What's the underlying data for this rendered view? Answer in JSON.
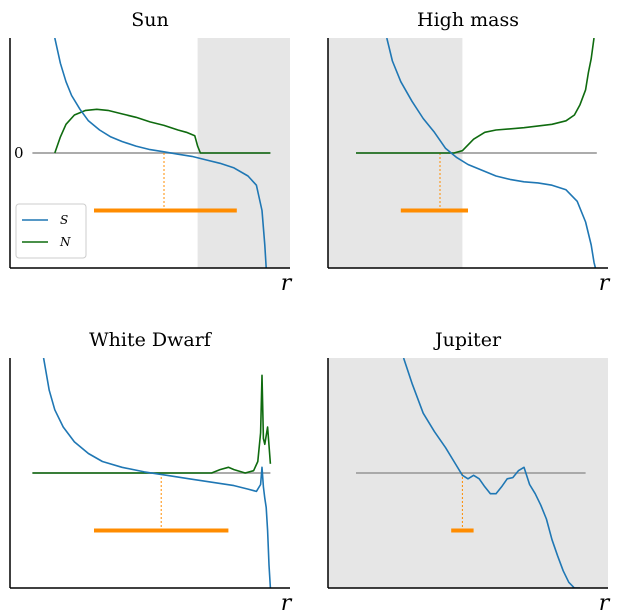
{
  "colors": {
    "S": "#1f77b4",
    "N": "#0f6b0f",
    "zero_line": "#a0a0a0",
    "bar": "#ff8c00",
    "shade": "#e6e6e6",
    "axes": "#000000"
  },
  "chart_data": [
    {
      "type": "line",
      "title": "Sun",
      "xlabel": "r",
      "ylabel": "",
      "y_tick_labels": [
        {
          "value": 0,
          "label": "0"
        }
      ],
      "xlim": [
        0,
        1
      ],
      "ylim": [
        -1,
        1
      ],
      "grid": false,
      "shaded_region": [
        0.67,
        1.0
      ],
      "legend": {
        "placement": "lower-left",
        "entries": [
          "S",
          "N"
        ]
      },
      "zero_line": [
        0.08,
        0.93
      ],
      "series": [
        {
          "name": "S",
          "x": [
            0.16,
            0.18,
            0.2,
            0.22,
            0.25,
            0.28,
            0.32,
            0.36,
            0.4,
            0.45,
            0.5,
            0.55,
            0.6,
            0.65,
            0.7,
            0.75,
            0.8,
            0.85,
            0.88,
            0.9,
            0.91,
            0.915
          ],
          "y": [
            1.0,
            0.78,
            0.62,
            0.5,
            0.38,
            0.28,
            0.2,
            0.14,
            0.1,
            0.06,
            0.03,
            0.01,
            -0.01,
            -0.03,
            -0.06,
            -0.09,
            -0.13,
            -0.2,
            -0.28,
            -0.5,
            -0.8,
            -1.0
          ]
        },
        {
          "name": "N",
          "x": [
            0.16,
            0.18,
            0.2,
            0.23,
            0.27,
            0.31,
            0.35,
            0.4,
            0.45,
            0.5,
            0.55,
            0.6,
            0.63,
            0.66,
            0.67,
            0.68,
            0.7,
            0.8,
            0.93
          ],
          "y": [
            0.0,
            0.14,
            0.25,
            0.33,
            0.37,
            0.38,
            0.37,
            0.34,
            0.31,
            0.27,
            0.24,
            0.2,
            0.18,
            0.15,
            0.06,
            0.0,
            0.0,
            0.0,
            0.0
          ]
        }
      ],
      "bar": {
        "center": 0.55,
        "x_range": [
          0.3,
          0.81
        ],
        "y": -0.5
      }
    },
    {
      "type": "line",
      "title": "High mass",
      "xlabel": "r",
      "ylabel": "",
      "xlim": [
        0,
        1
      ],
      "ylim": [
        -1,
        1
      ],
      "grid": false,
      "shaded_region": [
        0.0,
        0.48
      ],
      "zero_line": [
        0.1,
        0.96
      ],
      "series": [
        {
          "name": "S",
          "x": [
            0.21,
            0.23,
            0.26,
            0.3,
            0.34,
            0.38,
            0.42,
            0.46,
            0.5,
            0.55,
            0.6,
            0.65,
            0.7,
            0.75,
            0.8,
            0.85,
            0.89,
            0.92,
            0.94,
            0.95,
            0.955
          ],
          "y": [
            1.0,
            0.8,
            0.62,
            0.45,
            0.3,
            0.18,
            0.04,
            -0.04,
            -0.1,
            -0.15,
            -0.2,
            -0.23,
            -0.25,
            -0.26,
            -0.28,
            -0.32,
            -0.42,
            -0.6,
            -0.8,
            -0.95,
            -1.0
          ]
        },
        {
          "name": "N",
          "x": [
            0.1,
            0.3,
            0.45,
            0.48,
            0.52,
            0.56,
            0.6,
            0.7,
            0.8,
            0.85,
            0.88,
            0.9,
            0.92,
            0.93,
            0.94,
            0.95
          ],
          "y": [
            0.0,
            0.0,
            0.0,
            0.02,
            0.12,
            0.18,
            0.2,
            0.22,
            0.25,
            0.28,
            0.33,
            0.42,
            0.55,
            0.7,
            0.82,
            1.0
          ]
        }
      ],
      "bar": {
        "center": 0.4,
        "x_range": [
          0.26,
          0.5
        ],
        "y": -0.5
      }
    },
    {
      "type": "line",
      "title": "White Dwarf",
      "xlabel": "r",
      "ylabel": "",
      "xlim": [
        0,
        1
      ],
      "ylim": [
        -1,
        1
      ],
      "grid": false,
      "zero_line": [
        0.08,
        0.93
      ],
      "series": [
        {
          "name": "S",
          "x": [
            0.12,
            0.14,
            0.16,
            0.19,
            0.23,
            0.28,
            0.33,
            0.4,
            0.48,
            0.56,
            0.64,
            0.72,
            0.8,
            0.85,
            0.88,
            0.895,
            0.9,
            0.905,
            0.91,
            0.915,
            0.92,
            0.925,
            0.93
          ],
          "y": [
            1.0,
            0.72,
            0.55,
            0.4,
            0.27,
            0.17,
            0.1,
            0.05,
            0.01,
            -0.02,
            -0.05,
            -0.08,
            -0.11,
            -0.14,
            -0.16,
            -0.1,
            0.05,
            -0.12,
            -0.22,
            -0.3,
            -0.5,
            -0.8,
            -1.0
          ]
        },
        {
          "name": "N",
          "x": [
            0.08,
            0.3,
            0.6,
            0.72,
            0.75,
            0.78,
            0.8,
            0.84,
            0.87,
            0.885,
            0.895,
            0.9,
            0.905,
            0.91,
            0.92,
            0.93
          ],
          "y": [
            0.0,
            0.0,
            0.0,
            0.0,
            0.03,
            0.05,
            0.03,
            0.0,
            0.02,
            0.1,
            0.35,
            0.85,
            0.3,
            0.25,
            0.4,
            0.08
          ]
        }
      ],
      "bar": {
        "center": 0.54,
        "x_range": [
          0.3,
          0.78
        ],
        "y": -0.5
      }
    },
    {
      "type": "line",
      "title": "Jupiter",
      "xlabel": "r",
      "ylabel": "",
      "xlim": [
        0,
        1
      ],
      "ylim": [
        -1,
        1
      ],
      "grid": false,
      "shaded_region": [
        0.0,
        1.0
      ],
      "zero_line": [
        0.1,
        0.92
      ],
      "series": [
        {
          "name": "S",
          "x": [
            0.27,
            0.3,
            0.34,
            0.38,
            0.42,
            0.45,
            0.48,
            0.5,
            0.52,
            0.54,
            0.56,
            0.58,
            0.6,
            0.62,
            0.64,
            0.66,
            0.68,
            0.7,
            0.72,
            0.74,
            0.76,
            0.78,
            0.8,
            0.82,
            0.84,
            0.86,
            0.88,
            0.9
          ],
          "y": [
            1.0,
            0.78,
            0.52,
            0.36,
            0.22,
            0.1,
            -0.02,
            -0.05,
            -0.02,
            -0.05,
            -0.12,
            -0.18,
            -0.18,
            -0.12,
            -0.05,
            -0.04,
            0.02,
            0.05,
            -0.1,
            -0.18,
            -0.28,
            -0.4,
            -0.58,
            -0.72,
            -0.85,
            -0.95,
            -1.0,
            -1.0
          ]
        }
      ],
      "bar": {
        "center": 0.48,
        "x_range": [
          0.44,
          0.52
        ],
        "y": -0.5
      }
    }
  ]
}
